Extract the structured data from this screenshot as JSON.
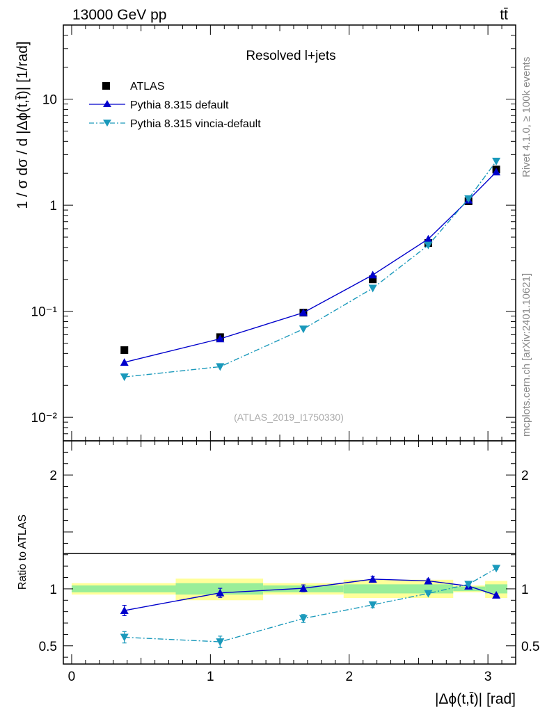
{
  "header": {
    "left_label": "13000 GeV pp",
    "right_label": "tt̄"
  },
  "side_text": {
    "rivet": "Rivet 4.1.0, ≥ 100k events",
    "mcplots": "mcplots.cern.ch [arXiv:2401.10621]"
  },
  "chart_data": [
    {
      "type": "line",
      "panel": "main",
      "title": "Resolved l+jets",
      "watermark": "(ATLAS_2019_I1750330)",
      "ylabel": "1 / σ dσ / d |Δϕ(t,t̄)| [1/rad]",
      "yscale": "log",
      "ylim": [
        0.006,
        50
      ],
      "xlim": [
        -0.06,
        3.2
      ],
      "ytick_labels": [
        "10",
        "1",
        "10⁻¹",
        "10⁻²"
      ],
      "ytick_values": [
        10,
        1,
        0.1,
        0.01
      ],
      "legend": [
        "ATLAS",
        "Pythia 8.315 default",
        "Pythia 8.315 vincia-default"
      ],
      "series": [
        {
          "name": "ATLAS",
          "style": "marker-square",
          "color": "#000000",
          "x": [
            0.38,
            1.07,
            1.67,
            2.17,
            2.57,
            2.86,
            3.06
          ],
          "y": [
            0.043,
            0.057,
            0.097,
            0.2,
            0.44,
            1.09,
            2.17
          ]
        },
        {
          "name": "Pythia 8.315 default",
          "style": "solid-triangle-up",
          "color": "#0000cc",
          "x": [
            0.38,
            1.07,
            1.67,
            2.17,
            2.57,
            2.86,
            3.06
          ],
          "y": [
            0.033,
            0.055,
            0.097,
            0.22,
            0.48,
            1.12,
            2.06
          ]
        },
        {
          "name": "Pythia 8.315 vincia-default",
          "style": "dashdot-triangle-down",
          "color": "#1a99bb",
          "x": [
            0.38,
            1.07,
            1.67,
            2.17,
            2.57,
            2.86,
            3.06
          ],
          "y": [
            0.024,
            0.03,
            0.068,
            0.165,
            0.42,
            1.15,
            2.6
          ]
        }
      ]
    },
    {
      "type": "line",
      "panel": "ratio",
      "ylabel": "Ratio to ATLAS",
      "xlabel": "|Δϕ(t,t̄)| [rad]",
      "ylim": [
        0.34,
        2.3
      ],
      "xlim": [
        -0.06,
        3.2
      ],
      "ytick_labels": [
        "2",
        "1",
        "0.5"
      ],
      "ytick_values": [
        2,
        1,
        0.5
      ],
      "xtick_labels": [
        "0",
        "1",
        "2",
        "3"
      ],
      "xtick_values": [
        0,
        1,
        2,
        3
      ],
      "bands": [
        {
          "xlo": 0.0,
          "xhi": 0.75,
          "yellow": [
            0.95,
            1.05
          ],
          "green": [
            0.97,
            1.03
          ]
        },
        {
          "xlo": 0.75,
          "xhi": 1.38,
          "yellow": [
            0.9,
            1.09
          ],
          "green": [
            0.95,
            1.05
          ]
        },
        {
          "xlo": 1.38,
          "xhi": 1.96,
          "yellow": [
            0.95,
            1.05
          ],
          "green": [
            0.97,
            1.03
          ]
        },
        {
          "xlo": 1.96,
          "xhi": 2.37,
          "yellow": [
            0.92,
            1.08
          ],
          "green": [
            0.96,
            1.04
          ]
        },
        {
          "xlo": 2.37,
          "xhi": 2.75,
          "yellow": [
            0.92,
            1.08
          ],
          "green": [
            0.96,
            1.04
          ]
        },
        {
          "xlo": 2.75,
          "xhi": 2.98,
          "yellow": [
            0.97,
            1.03
          ],
          "green": [
            0.98,
            1.02
          ]
        },
        {
          "xlo": 2.98,
          "xhi": 3.14,
          "yellow": [
            0.92,
            1.07
          ],
          "green": [
            0.96,
            1.04
          ]
        }
      ],
      "series": [
        {
          "name": "Pythia 8.315 default",
          "color": "#0000cc",
          "x": [
            0.38,
            1.07,
            1.67,
            2.17,
            2.57,
            2.86,
            3.06
          ],
          "y": [
            0.81,
            0.965,
            1.005,
            1.085,
            1.07,
            1.025,
            0.945
          ],
          "err": [
            0.045,
            0.04,
            0.03,
            0.025,
            0.015,
            0.01,
            0.01
          ]
        },
        {
          "name": "Pythia 8.315 vincia-default",
          "color": "#1a99bb",
          "x": [
            0.38,
            1.07,
            1.67,
            2.17,
            2.57,
            2.86,
            3.06
          ],
          "y": [
            0.575,
            0.535,
            0.74,
            0.86,
            0.96,
            1.04,
            1.18
          ],
          "err": [
            0.05,
            0.05,
            0.035,
            0.025,
            0.012,
            0.01,
            0.01
          ]
        }
      ]
    }
  ]
}
